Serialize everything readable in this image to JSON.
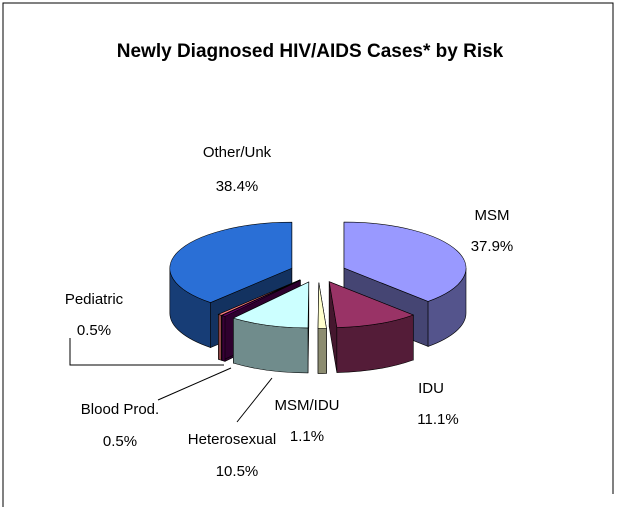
{
  "chart_data": {
    "type": "pie3d",
    "title": "Newly Diagnosed HIV/AIDS Cases* by Risk",
    "categories": [
      "MSM",
      "IDU",
      "MSM/IDU",
      "Heterosexual",
      "Blood Prod.",
      "Pediatric",
      "Other/Unk"
    ],
    "values": [
      37.9,
      11.1,
      1.1,
      10.5,
      0.5,
      0.5,
      38.4
    ],
    "value_labels": [
      "37.9%",
      "11.1%",
      "1.1%",
      "10.5%",
      "0.5%",
      "0.5%",
      "38.4%"
    ],
    "colors": [
      "#9999ff",
      "#993366",
      "#ffffcc",
      "#ccffff",
      "#660066",
      "#ff8080",
      "#2a6fd6"
    ],
    "exploded": true
  }
}
